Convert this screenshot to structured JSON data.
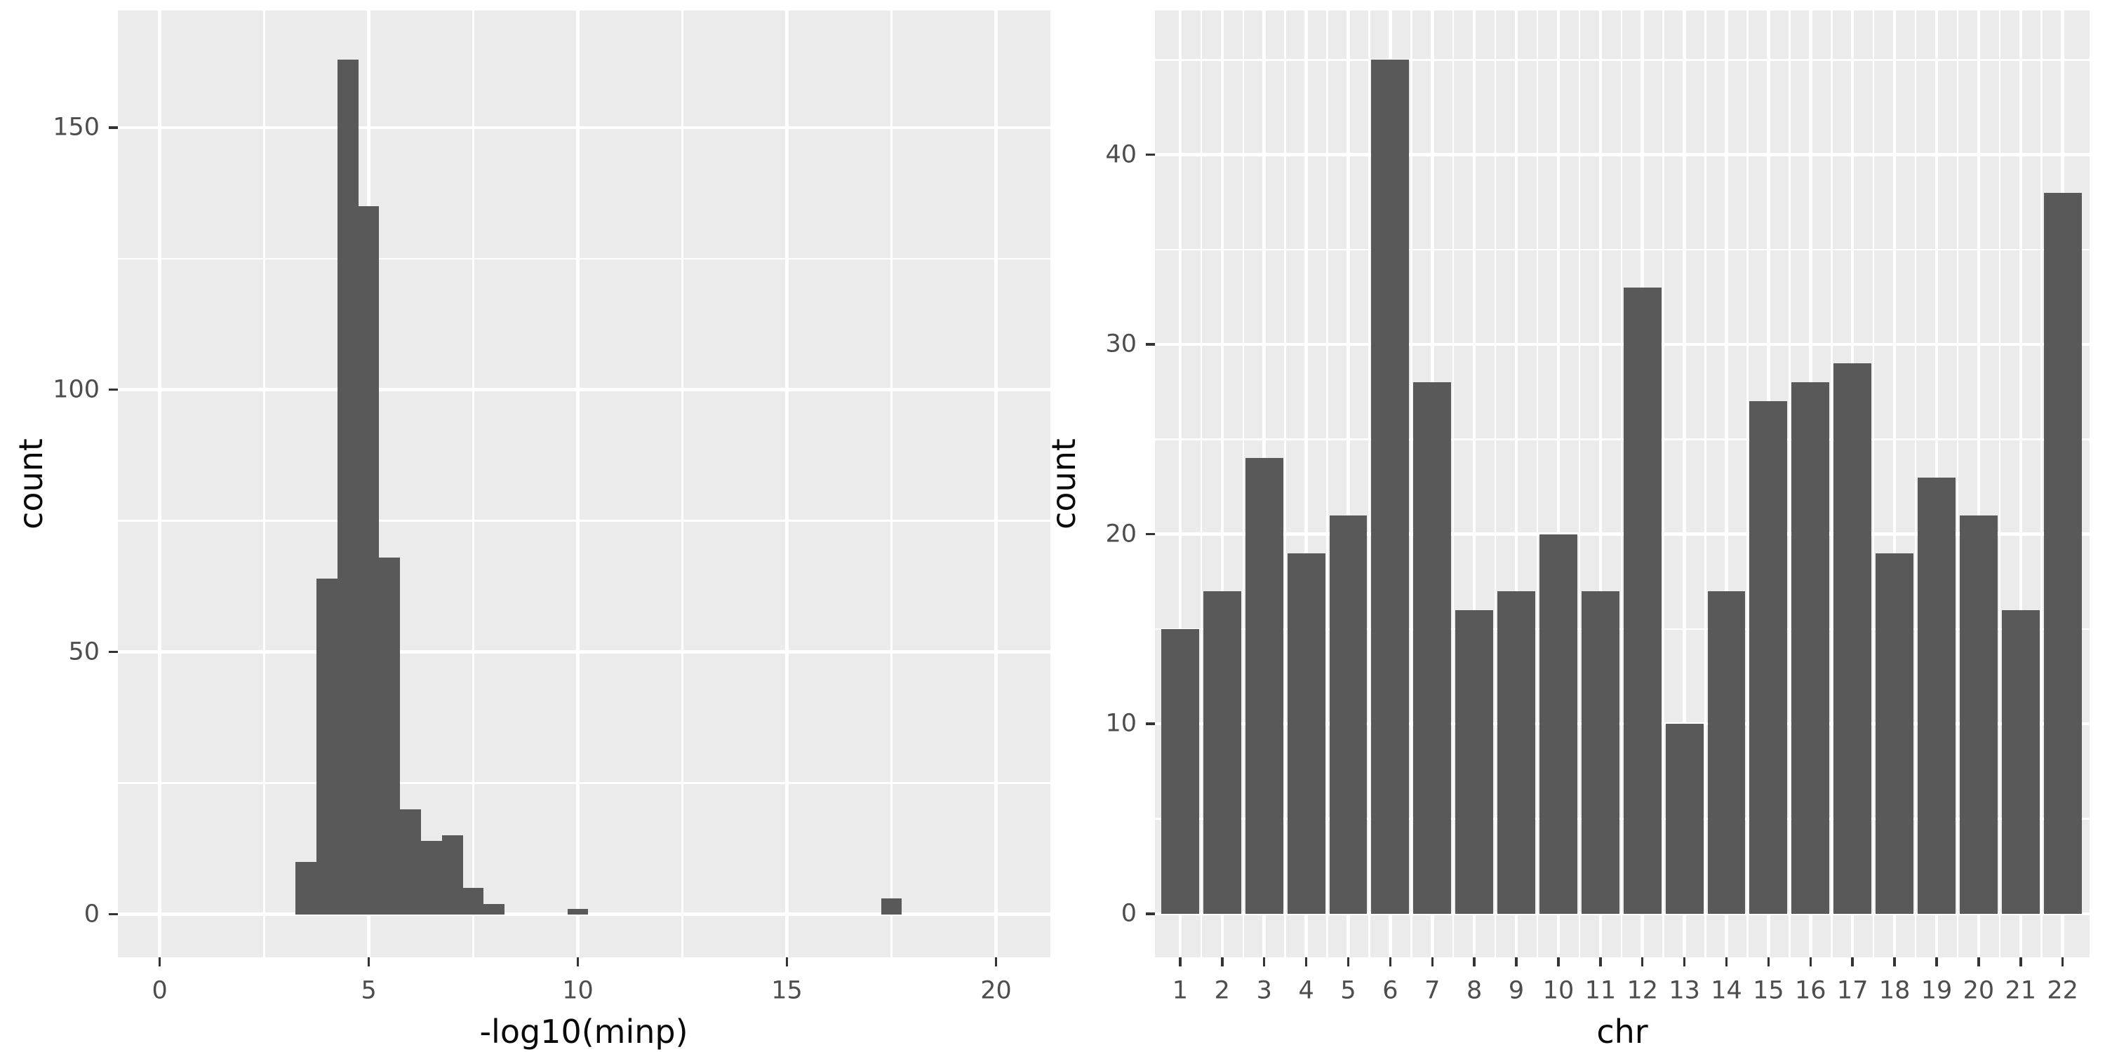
{
  "figure": {
    "background": "#FFFFFF",
    "panel_background": "#EBEBEB",
    "gridline_color": "#FFFFFF",
    "bar_color": "#595959",
    "tick_mark_color": "#333333",
    "tick_label_color": "#4D4D4D",
    "axis_title_color": "#0A0A0A"
  },
  "chart_data": [
    {
      "type": "bar",
      "subtype": "histogram",
      "title": "",
      "xlabel": "-log10(minp)",
      "ylabel": "count",
      "bin_width": 0.5,
      "bin_centers": [
        3.5,
        4,
        4.5,
        5,
        5.5,
        6,
        6.5,
        7,
        7.5,
        8,
        10,
        17.5
      ],
      "counts": [
        10,
        64,
        163,
        135,
        68,
        20,
        14,
        15,
        5,
        2,
        1,
        3
      ],
      "x_axis": {
        "ticks": [
          0,
          5,
          10,
          15,
          20
        ],
        "minor_breaks": [
          2.5,
          7.5,
          12.5,
          17.5
        ],
        "range": [
          -1.0,
          21.3
        ]
      },
      "y_axis": {
        "ticks": [
          0,
          50,
          100,
          150
        ],
        "minor_breaks": [
          25,
          75,
          125
        ],
        "range": [
          -8.2,
          172.3
        ]
      },
      "grid": true,
      "legend": "none"
    },
    {
      "type": "bar",
      "subtype": "categorical",
      "title": "",
      "xlabel": "chr",
      "ylabel": "count",
      "categories": [
        "1",
        "2",
        "3",
        "4",
        "5",
        "6",
        "7",
        "8",
        "9",
        "10",
        "11",
        "12",
        "13",
        "14",
        "15",
        "16",
        "17",
        "18",
        "19",
        "20",
        "21",
        "22"
      ],
      "values": [
        15,
        17,
        24,
        19,
        21,
        45,
        28,
        16,
        17,
        20,
        17,
        33,
        10,
        17,
        27,
        28,
        29,
        19,
        23,
        21,
        16,
        38
      ],
      "bar_rel_width": 0.9,
      "x_axis": {
        "range": [
          0.4,
          22.64
        ]
      },
      "y_axis": {
        "ticks": [
          0,
          10,
          20,
          30,
          40
        ],
        "minor_breaks": [
          5,
          15,
          25,
          35,
          45
        ],
        "range": [
          -2.3,
          47.6
        ]
      },
      "grid": true,
      "legend": "none"
    }
  ]
}
